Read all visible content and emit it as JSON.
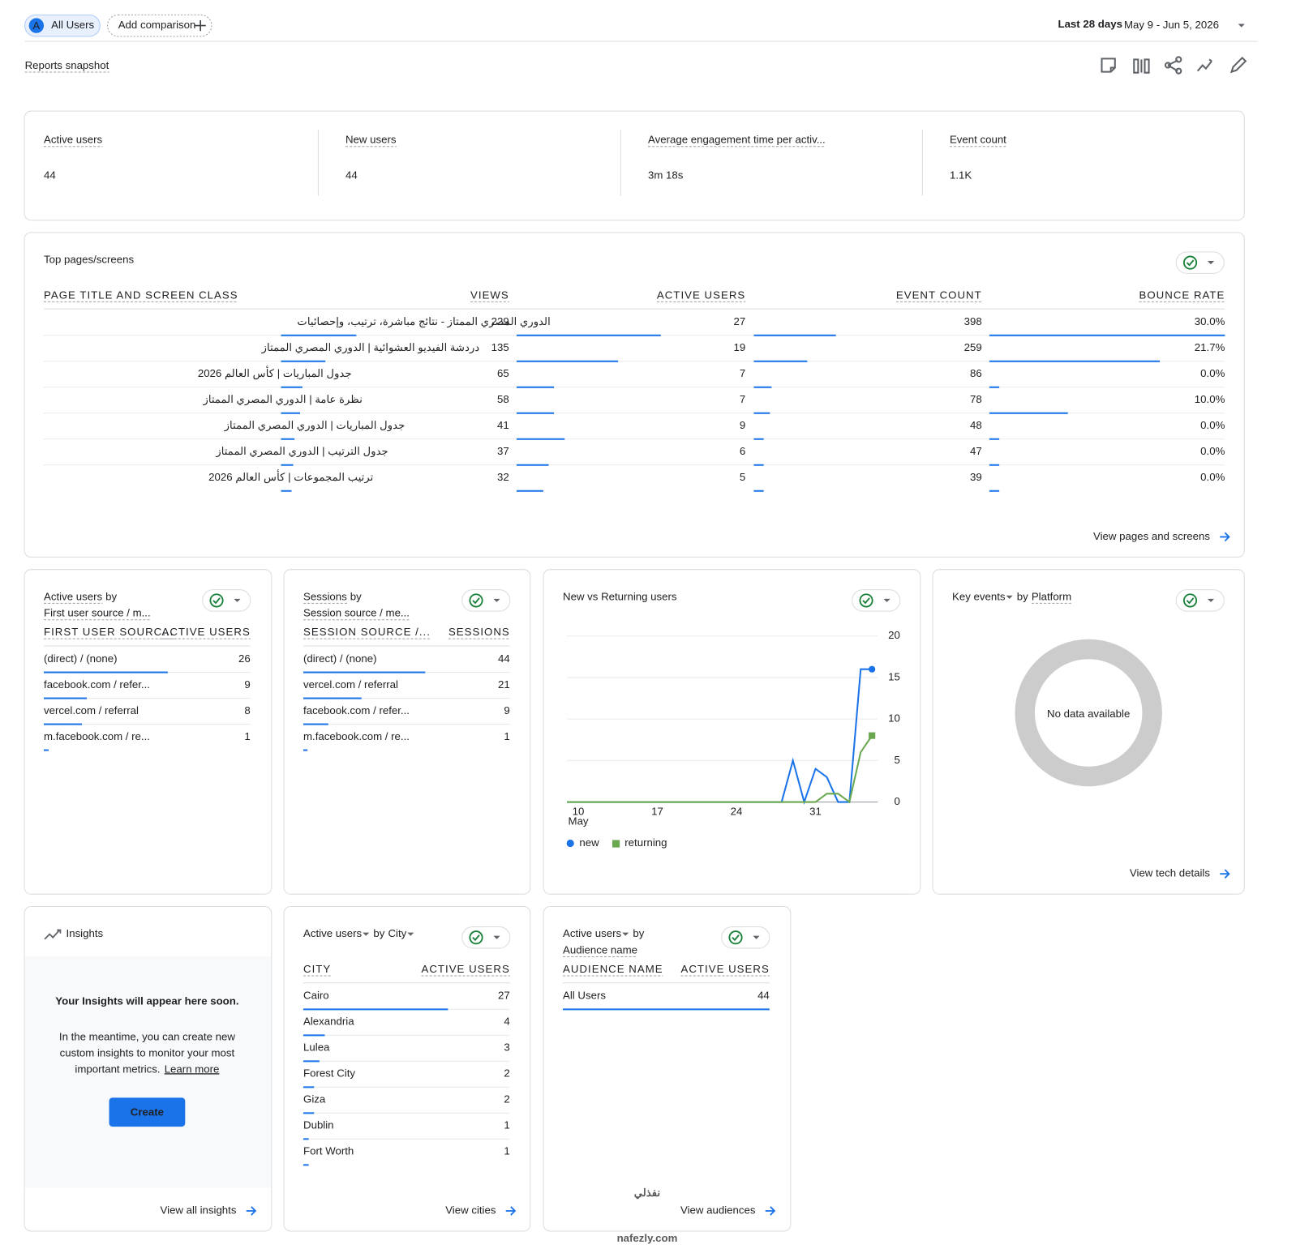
{
  "header": {
    "segment_badge": "A",
    "segment": "All Users",
    "add_comparison": "Add comparison",
    "date_range_label": "Last 28 days",
    "date_range": "May 9 - Jun 5, 2026",
    "title": "Reports snapshot"
  },
  "kpis": [
    {
      "label": "Active users",
      "value": 44
    },
    {
      "label": "New users",
      "value": 44
    },
    {
      "label": "Average engagement time per activ...",
      "value": "3m 18s"
    },
    {
      "label": "Event count",
      "value": "1.1K"
    }
  ],
  "top_pages": {
    "title": "Top pages/screens",
    "columns": [
      "PAGE TITLE AND SCREEN CLASS",
      "VIEWS",
      "ACTIVE USERS",
      "EVENT COUNT",
      "BOUNCE RATE"
    ],
    "page_titles": [
      "الدوري المصري الممتاز - نتائج مباشرة، ترتيب، وإحصائيات",
      "دردشة الفيديو العشوائية | الدوري المصري الممتاز",
      "جدول المباريات | كأس العالم 2026",
      "نظرة عامة | الدوري المصري الممتاز",
      "جدول المباريات | الدوري المصري الممتاز",
      "جدول الترتيب | الدوري المصري الممتاز",
      "ترتيب المجموعات | كأس العالم 2026"
    ],
    "views": [
      229,
      135,
      65,
      58,
      41,
      37,
      32
    ],
    "active_users": [
      27,
      19,
      7,
      7,
      9,
      6,
      5
    ],
    "event_counts": [
      398,
      259,
      86,
      78,
      48,
      47,
      39
    ],
    "bounce_rates": [
      30.0,
      21.7,
      0.0,
      10.0,
      0.0,
      0.0,
      0.0
    ],
    "bounce_rate_labels": [
      "30.0%",
      "21.7%",
      "0.0%",
      "10.0%",
      "0.0%",
      "0.0%",
      "0.0%"
    ],
    "link": "View pages and screens"
  },
  "first_source": {
    "metric": "Active users",
    "by": "by",
    "dimension": "First user source / m...",
    "columns": [
      "FIRST USER SOURC...",
      "ACTIVE USERS"
    ],
    "labels": [
      "(direct) / (none)",
      "facebook.com / refer...",
      "vercel.com / referral",
      "m.facebook.com / re..."
    ],
    "values": [
      26,
      9,
      8,
      1
    ]
  },
  "sessions": {
    "metric": "Sessions",
    "by": "by",
    "dimension": "Session source / me...",
    "columns": [
      "SESSION SOURCE /...",
      "SESSIONS"
    ],
    "labels": [
      "(direct) / (none)",
      "vercel.com / referral",
      "facebook.com / refer...",
      "m.facebook.com / re..."
    ],
    "values": [
      44,
      21,
      9,
      1
    ]
  },
  "chart_data": {
    "type": "line",
    "title": "New vs Returning users",
    "categories": [
      null,
      "10",
      null,
      null,
      null,
      null,
      null,
      null,
      "17",
      null,
      null,
      null,
      null,
      null,
      null,
      "24",
      null,
      null,
      null,
      null,
      null,
      null,
      "31",
      null,
      null,
      null,
      null,
      null
    ],
    "x_sublabel": "May",
    "series": [
      {
        "name": "new",
        "color": "#1a73e8",
        "marker": "circle",
        "values": [
          0,
          0,
          0,
          0,
          0,
          0,
          0,
          0,
          0,
          0,
          0,
          0,
          0,
          0,
          0,
          0,
          0,
          0,
          0,
          0,
          5,
          0,
          4,
          3,
          0,
          0,
          16,
          16
        ]
      },
      {
        "name": "returning",
        "color": "#6aa84f",
        "marker": "square",
        "values": [
          0,
          0,
          0,
          0,
          0,
          0,
          0,
          0,
          0,
          0,
          0,
          0,
          0,
          0,
          0,
          0,
          0,
          0,
          0,
          0,
          0,
          0,
          0,
          1,
          1,
          0,
          6,
          8
        ]
      }
    ],
    "ylim": [
      0,
      20
    ],
    "yticks": [
      0,
      5,
      10,
      15,
      20
    ],
    "grid": true
  },
  "key_events": {
    "metric": "Key events",
    "by": "by",
    "dimension": "Platform",
    "empty": "No data available",
    "link": "View tech details"
  },
  "insights": {
    "title": "Insights",
    "heading": "Your Insights will appear here soon.",
    "body": [
      "In the meantime, you can create new",
      "custom insights to monitor your most",
      "important metrics."
    ],
    "learn_more": "Learn more",
    "button": "Create",
    "link": "View all insights"
  },
  "city": {
    "metric": "Active users",
    "by": "by",
    "dimension": "City",
    "columns": [
      "CITY",
      "ACTIVE USERS"
    ],
    "labels": [
      "Cairo",
      "Alexandria",
      "Lulea",
      "Forest City",
      "Giza",
      "Dublin",
      "Fort Worth"
    ],
    "values": [
      27,
      4,
      3,
      2,
      2,
      1,
      1
    ],
    "link": "View cities"
  },
  "audience": {
    "metric": "Active users",
    "by": "by",
    "dimension": "Audience name",
    "columns": [
      "AUDIENCE NAME",
      "ACTIVE USERS"
    ],
    "labels": [
      "All Users"
    ],
    "values": [
      44
    ],
    "link": "View audiences"
  },
  "watermark": {
    "arabic": "نفذلي",
    "latin": "nafezly.com"
  }
}
